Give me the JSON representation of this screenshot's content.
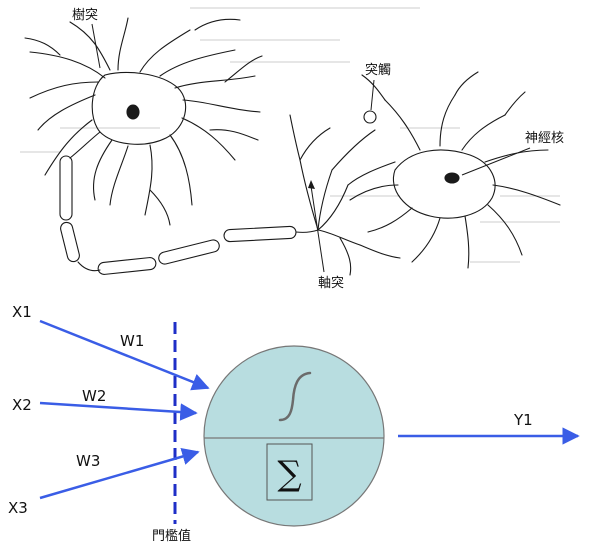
{
  "neuron": {
    "dendrite_label": "樹突",
    "synapse_label": "突觸",
    "nucleus_label": "神經核",
    "axon_label": "軸突"
  },
  "perceptron": {
    "inputs": [
      "X1",
      "X2",
      "X3"
    ],
    "weights": [
      "W1",
      "W2",
      "W3"
    ],
    "output": "Y1",
    "threshold_label": "門檻值",
    "sum_symbol": "∑"
  },
  "colors": {
    "arrow": "#3a5de6",
    "threshold_line": "#1f2fc7",
    "node_fill": "#b8dde0",
    "node_stroke": "#777777",
    "drawing_ink": "#1a1a1a"
  }
}
